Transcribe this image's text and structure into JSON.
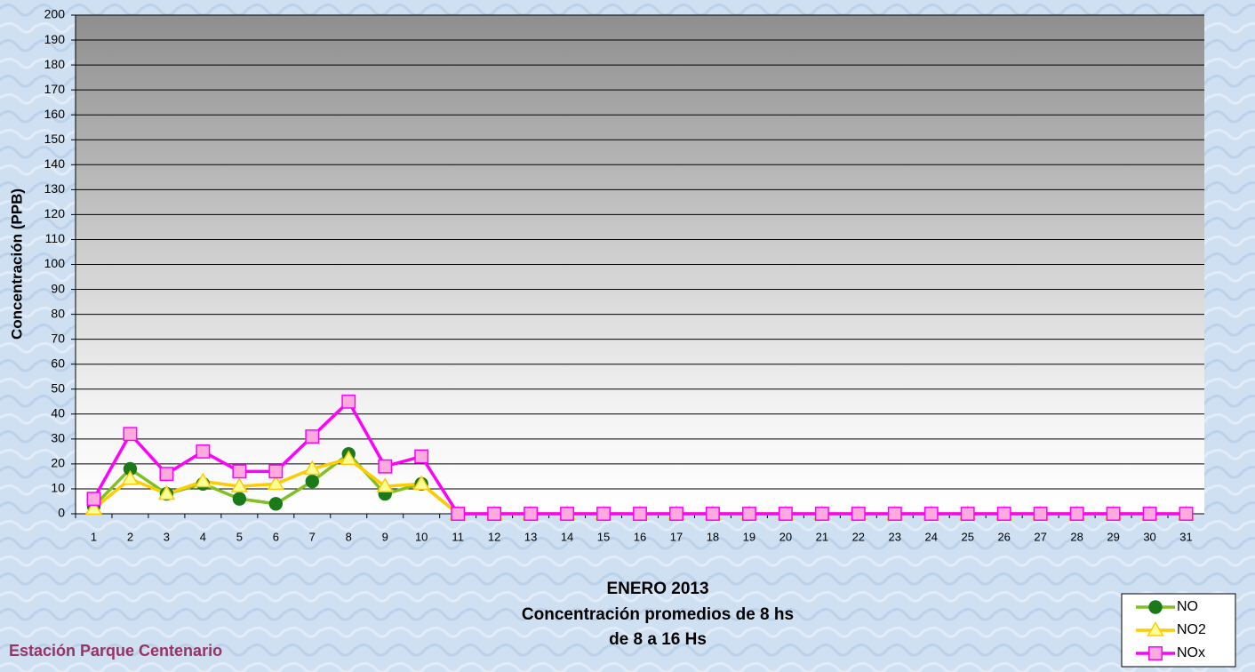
{
  "chart_data": {
    "type": "line",
    "title": [
      "ENERO 2013",
      "Concentración promedios de 8 hs",
      "de 8 a 16 Hs"
    ],
    "subtitle": "Estación Parque Centenario",
    "y_label": "Concentración (PPB)",
    "categories": [
      1,
      2,
      3,
      4,
      5,
      6,
      7,
      8,
      9,
      10,
      11,
      12,
      13,
      14,
      15,
      16,
      17,
      18,
      19,
      20,
      21,
      22,
      23,
      24,
      25,
      26,
      27,
      28,
      29,
      30,
      31
    ],
    "series": [
      {
        "name": "NO",
        "color": "#80c020",
        "marker": "circle",
        "marker_color": "#1a7a1a",
        "values": [
          3,
          18,
          8,
          12,
          6,
          4,
          13,
          24,
          8,
          12,
          0,
          0,
          0,
          0,
          0,
          0,
          0,
          0,
          0,
          0,
          0,
          0,
          0,
          0,
          0,
          0,
          0,
          0,
          0,
          0,
          0
        ]
      },
      {
        "name": "NO2",
        "color": "#ffcc00",
        "marker": "triangle",
        "marker_color": "#ffff99",
        "values": [
          2,
          14,
          8,
          13,
          11,
          12,
          18,
          22,
          11,
          12,
          0,
          0,
          0,
          0,
          0,
          0,
          0,
          0,
          0,
          0,
          0,
          0,
          0,
          0,
          0,
          0,
          0,
          0,
          0,
          0,
          0
        ]
      },
      {
        "name": "NOx",
        "color": "#ff00ff",
        "marker": "square",
        "marker_color": "#ffaadd",
        "values": [
          6,
          32,
          16,
          25,
          17,
          17,
          31,
          45,
          19,
          23,
          0,
          0,
          0,
          0,
          0,
          0,
          0,
          0,
          0,
          0,
          0,
          0,
          0,
          0,
          0,
          0,
          0,
          0,
          0,
          0,
          0
        ]
      }
    ],
    "ylim": [
      0,
      200
    ],
    "yticks": [
      0,
      10,
      20,
      30,
      40,
      50,
      60,
      70,
      80,
      90,
      100,
      110,
      120,
      130,
      140,
      150,
      160,
      170,
      180,
      190,
      200
    ],
    "grid": true,
    "legend": "bottom-right"
  }
}
